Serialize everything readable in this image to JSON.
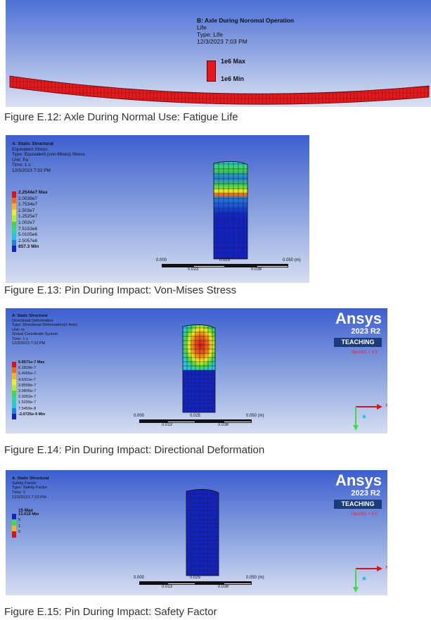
{
  "figure12": {
    "header": {
      "title": "B: Axle During Noromal Operation",
      "line1": "Life",
      "line2": "Type: Life",
      "line3": "12/3/2023 7:03 PM"
    },
    "legend": {
      "max": "1e6 Max",
      "min": "1e6 Min",
      "color": "#e8171b"
    },
    "caption": "Figure E.12:  Axle During Normal Use: Fatigue Life"
  },
  "figure13": {
    "header": {
      "title": "A: Static Structural",
      "line1": "Equivalent Stress",
      "line2": "Type: Equivalent (von-Mises) Stress",
      "line3": "Unit: Pa",
      "line4": "Time: 1 s",
      "line5": "12/3/2023 7:32 PM"
    },
    "legend": [
      {
        "label": "2.2544e7 Max",
        "color": "#d9121b"
      },
      {
        "label": "2.0039e7",
        "color": "#f26a17"
      },
      {
        "label": "1.7534e7",
        "color": "#f7b51b"
      },
      {
        "label": "1.503e7",
        "color": "#f1ee22"
      },
      {
        "label": "1.2525e7",
        "color": "#b7e92d"
      },
      {
        "label": "1.002e7",
        "color": "#42d946"
      },
      {
        "label": "7.5153e6",
        "color": "#2bd7a1"
      },
      {
        "label": "5.0105e6",
        "color": "#25c7e0"
      },
      {
        "label": "2.5057e6",
        "color": "#1f7de6"
      },
      {
        "label": "857.3 Min",
        "color": "#1122c8"
      }
    ],
    "ruler": {
      "t0": "0.000",
      "t1": "0.025",
      "t2": "0.050 (m)",
      "t3": "0.013",
      "t4": "0.038"
    },
    "caption": "Figure E.13:  Pin During Impact: Von-Mises Stress"
  },
  "figure14": {
    "header": {
      "title": "A: Static Structural",
      "line1": "Directional Deformation",
      "line2": "Type: Directional Deformation(X Axis)",
      "line3": "Unit: m",
      "line4": "Global Coordinate System",
      "line5": "Time: 1 s",
      "line6": "12/3/2023 7:33 PM"
    },
    "legend": [
      {
        "label": "6.9571e-7 Max",
        "color": "#d9121b"
      },
      {
        "label": "6.1818e-7",
        "color": "#f26a17"
      },
      {
        "label": "5.4065e-7",
        "color": "#f7b51b"
      },
      {
        "label": "4.6311e-7",
        "color": "#f1ee22"
      },
      {
        "label": "3.8558e-7",
        "color": "#b7e92d"
      },
      {
        "label": "3.0805e-7",
        "color": "#42d946"
      },
      {
        "label": "2.3052e-7",
        "color": "#2bd7a1"
      },
      {
        "label": "1.5299e-7",
        "color": "#25c7e0"
      },
      {
        "label": "7.5459e-8",
        "color": "#1f7de6"
      },
      {
        "label": "-2.0725e-9 Min",
        "color": "#1122c8"
      }
    ],
    "ruler": {
      "t0": "0.000",
      "t1": "0.025",
      "t2": "0.050 (m)",
      "t3": "0.013",
      "t4": "0.038"
    },
    "logo": {
      "brand": "Ansys",
      "version": "2023 R2",
      "teaching": "TEACHING",
      "opengl": "OpenGL < 4.5"
    },
    "axes": {
      "x": "X",
      "y": "Y"
    },
    "caption": "Figure E.14:  Pin During Impact: Directional Deformation"
  },
  "figure15": {
    "header": {
      "title": "A: Static Structural",
      "line1": "Safety Factor",
      "line2": "Type: Safety Factor",
      "line3": "Time: 1",
      "line4": "12/3/2023 7:23 PM"
    },
    "legend_max": "15 Max",
    "legend": [
      {
        "label": "13.019 Min",
        "color": "#1122c8"
      },
      {
        "label": "5",
        "color": "#42d946"
      },
      {
        "label": "1",
        "color": "#f7b51b"
      },
      {
        "label": "0",
        "color": "#d9121b"
      }
    ],
    "ruler": {
      "t0": "0.000",
      "t1": "0.025",
      "t2": "0.050 (m)",
      "t3": "0.013",
      "t4": "0.038"
    },
    "logo": {
      "brand": "Ansys",
      "version": "2023 R2",
      "teaching": "TEACHING",
      "opengl": "OpenGL < 4.5"
    },
    "axes": {
      "x": "X",
      "y": "Y"
    },
    "caption": "Figure E.15:  Pin During Impact: Safety Factor"
  }
}
